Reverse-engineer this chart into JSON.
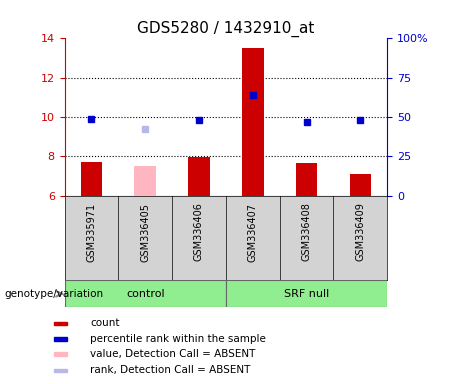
{
  "title": "GDS5280 / 1432910_at",
  "samples": [
    "GSM335971",
    "GSM336405",
    "GSM336406",
    "GSM336407",
    "GSM336408",
    "GSM336409"
  ],
  "red_bars": [
    7.7,
    null,
    7.95,
    13.5,
    7.65,
    7.1
  ],
  "pink_bars": [
    null,
    7.5,
    null,
    null,
    null,
    null
  ],
  "blue_squares": [
    9.9,
    null,
    9.85,
    11.1,
    9.75,
    9.85
  ],
  "lavender_squares": [
    null,
    9.4,
    null,
    null,
    null,
    null
  ],
  "ylim_left": [
    6,
    14
  ],
  "ylim_right": [
    0,
    100
  ],
  "yticks_left": [
    6,
    8,
    10,
    12,
    14
  ],
  "yticks_right": [
    0,
    25,
    50,
    75,
    100
  ],
  "ytick_labels_right": [
    "0",
    "25",
    "50",
    "75",
    "100%"
  ],
  "bar_width": 0.4,
  "bar_baseline": 6,
  "left_axis_color": "#cc0000",
  "right_axis_color": "#0000cc",
  "bg_plot": "#ffffff",
  "bg_sample_row": "#d3d3d3",
  "group_color": "#90EE90",
  "grid_ticks": [
    8,
    10,
    12
  ],
  "control_label": "control",
  "srf_label": "SRF null",
  "genotype_label": "genotype/variation",
  "legend_items": [
    {
      "label": "count",
      "color": "#cc0000"
    },
    {
      "label": "percentile rank within the sample",
      "color": "#0000cc"
    },
    {
      "label": "value, Detection Call = ABSENT",
      "color": "#ffb6c1"
    },
    {
      "label": "rank, Detection Call = ABSENT",
      "color": "#b8b8e8"
    }
  ]
}
